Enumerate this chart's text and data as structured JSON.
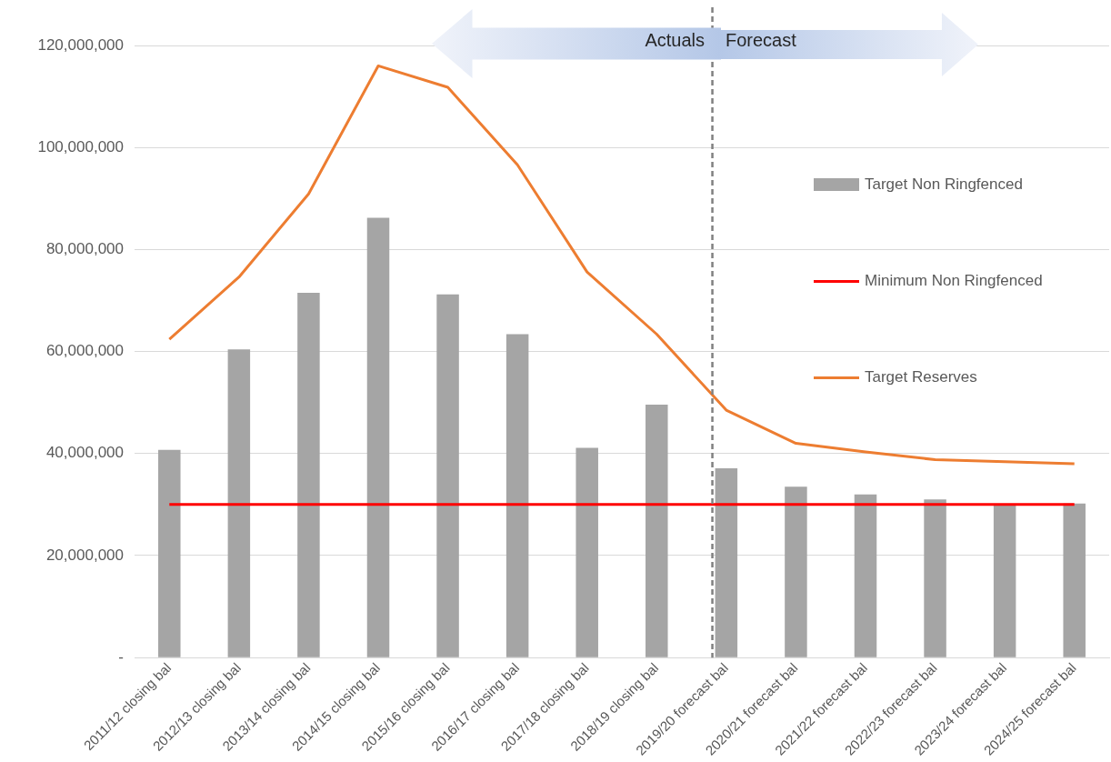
{
  "chart_data": {
    "type": "bar",
    "categories": [
      "2011/12 closing bal",
      "2012/13 closing bal",
      "2013/14 closing bal",
      "2014/15 closing bal",
      "2015/16 closing bal",
      "2016/17 closing bal",
      "2017/18 closing bal",
      "2018/19 closing bal",
      "2019/20 forecast bal",
      "2020/21 forecast bal",
      "2021/22 forecast bal",
      "2022/23 forecast bal",
      "2023/24 forecast bal",
      "2024/25 forecast bal"
    ],
    "series": [
      {
        "name": "Target Non Ringfenced",
        "color": "#a5a5a5",
        "values": [
          40700000,
          60400000,
          71500000,
          86200000,
          71200000,
          63400000,
          41100000,
          49600000,
          37100000,
          33500000,
          32000000,
          31000000,
          29900000,
          30200000
        ]
      },
      {
        "name": "Minimum Non Ringfenced",
        "type": "line",
        "color": "#ff0000",
        "values": [
          30000000,
          30000000,
          30000000,
          30000000,
          30000000,
          30000000,
          30000000,
          30000000,
          30000000,
          30000000,
          30000000,
          30000000,
          30000000,
          30000000
        ]
      },
      {
        "name": "Target Reserves",
        "type": "line",
        "color": "#ed7d31",
        "values": [
          62400000,
          74600000,
          90900000,
          116000000,
          111800000,
          96600000,
          75600000,
          63400000,
          48500000,
          42000000,
          40300000,
          38800000,
          38400000,
          38000000
        ]
      }
    ],
    "ylim": [
      0,
      120000000
    ],
    "yticks": [
      {
        "value": 0,
        "label": "-"
      },
      {
        "value": 20000000,
        "label": "20,000,000"
      },
      {
        "value": 40000000,
        "label": "40,000,000"
      },
      {
        "value": 60000000,
        "label": "60,000,000"
      },
      {
        "value": 80000000,
        "label": "80,000,000"
      },
      {
        "value": 100000000,
        "label": "100,000,000"
      },
      {
        "value": 120000000,
        "label": "120,000,000"
      }
    ],
    "grid": "y",
    "legend": "right",
    "marker": "none",
    "ref_lines": [
      {
        "axis": "x",
        "value": "2019/20 forecast bal",
        "color": "#808080",
        "line_style": "dashed"
      }
    ],
    "annotations": [
      "Actuals",
      "Forecast"
    ]
  }
}
